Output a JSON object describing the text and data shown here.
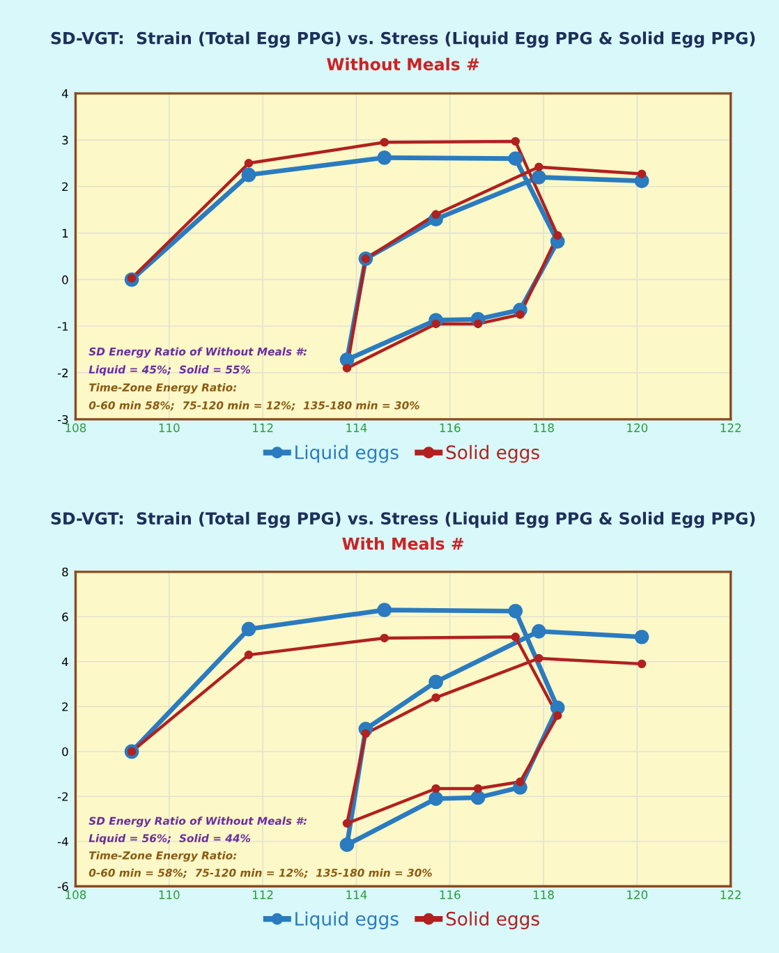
{
  "chart_data": [
    {
      "type": "line",
      "title": "SD-VGT:  Strain (Total Egg PPG) vs. Stress (Liquid Egg PPG & Solid Egg PPG)",
      "subtitle": "Without Meals #",
      "x": [
        109.2,
        111.7,
        114.6,
        117.4,
        118.3,
        117.5,
        116.6,
        115.7,
        113.8,
        114.2,
        115.7,
        117.9,
        120.1
      ],
      "series": [
        {
          "name": "Liquid eggs",
          "color": "#2a7bbf",
          "values": [
            0,
            2.25,
            2.62,
            2.6,
            0.82,
            -0.65,
            -0.85,
            -0.87,
            -1.72,
            0.45,
            1.3,
            2.2,
            2.12
          ]
        },
        {
          "name": "Solid eggs",
          "color": "#b0211f",
          "values": [
            0.03,
            2.5,
            2.95,
            2.97,
            0.95,
            -0.75,
            -0.95,
            -0.95,
            -1.9,
            0.45,
            1.4,
            2.42,
            2.27
          ]
        }
      ],
      "xlim": [
        108,
        122
      ],
      "xticks": [
        108,
        110,
        112,
        114,
        116,
        118,
        120,
        122
      ],
      "ylim": [
        -3,
        4
      ],
      "yticks": [
        -3,
        -2,
        -1,
        0,
        1,
        2,
        3,
        4
      ],
      "grid": true,
      "legend": "bottom",
      "marker": "circle",
      "line_style": "solid",
      "annotations": [
        "SD Energy Ratio of Without Meals #:",
        "Liquid = 45%;  Solid = 55%",
        "Time-Zone Energy Ratio:",
        "0-60 min 58%;  75-120 min = 12%;  135-180 min = 30%"
      ]
    },
    {
      "type": "line",
      "title": "SD-VGT:  Strain (Total Egg PPG) vs. Stress (Liquid Egg PPG & Solid Egg PPG)",
      "subtitle": "With Meals #",
      "x": [
        109.2,
        111.7,
        114.6,
        117.4,
        118.3,
        117.5,
        116.6,
        115.7,
        113.8,
        114.2,
        115.7,
        117.9,
        120.1
      ],
      "series": [
        {
          "name": "Liquid eggs",
          "color": "#2a7bbf",
          "values": [
            0,
            5.45,
            6.3,
            6.25,
            1.95,
            -1.6,
            -2.05,
            -2.1,
            -4.15,
            1.0,
            3.1,
            5.35,
            5.1
          ]
        },
        {
          "name": "Solid eggs",
          "color": "#b0211f",
          "values": [
            0,
            4.3,
            5.05,
            5.1,
            1.6,
            -1.35,
            -1.65,
            -1.65,
            -3.2,
            0.8,
            2.4,
            4.15,
            3.9
          ]
        }
      ],
      "xlim": [
        108,
        122
      ],
      "xticks": [
        108,
        110,
        112,
        114,
        116,
        118,
        120,
        122
      ],
      "ylim": [
        -6,
        8
      ],
      "yticks": [
        -6,
        -4,
        -2,
        0,
        2,
        4,
        6,
        8
      ],
      "grid": true,
      "legend": "bottom",
      "marker": "circle",
      "line_style": "solid",
      "annotations": [
        "SD Energy Ratio of Without Meals #:",
        "Liquid = 56%;  Solid = 44%",
        "Time-Zone Energy Ratio:",
        "0-60 min = 58%;  75-120 min = 12%;  135-180 min = 30%"
      ]
    }
  ]
}
